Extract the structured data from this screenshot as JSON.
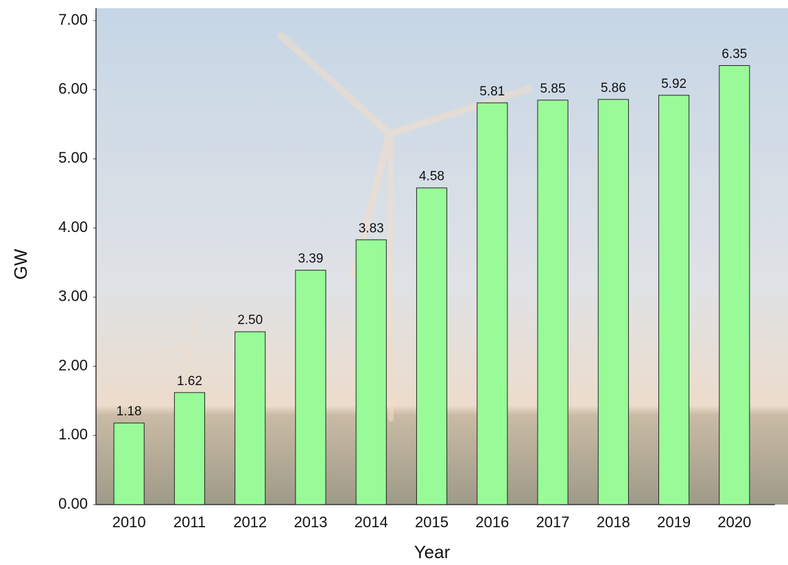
{
  "chart_data": {
    "type": "bar",
    "x_label": "Year",
    "y_label": "GW",
    "categories": [
      "2010",
      "2011",
      "2012",
      "2013",
      "2014",
      "2015",
      "2016",
      "2017",
      "2018",
      "2019",
      "2020"
    ],
    "values": [
      1.18,
      1.62,
      2.5,
      3.39,
      3.83,
      4.58,
      5.81,
      5.85,
      5.86,
      5.92,
      6.35
    ],
    "value_labels": [
      "1.18",
      "1.62",
      "2.50",
      "3.39",
      "3.83",
      "4.58",
      "5.81",
      "5.85",
      "5.86",
      "5.92",
      "6.35"
    ],
    "color": "#98fb98",
    "ylim": [
      0,
      7
    ],
    "yticks": [
      {
        "value": 0,
        "label": "0.00"
      },
      {
        "value": 1,
        "label": "1.00"
      },
      {
        "value": 2,
        "label": "2.00"
      },
      {
        "value": 3,
        "label": "3.00"
      },
      {
        "value": 4,
        "label": "4.00"
      },
      {
        "value": 5,
        "label": "5.00"
      },
      {
        "value": 6,
        "label": "6.00"
      },
      {
        "value": 7,
        "label": "7.00"
      }
    ],
    "grid": false
  }
}
